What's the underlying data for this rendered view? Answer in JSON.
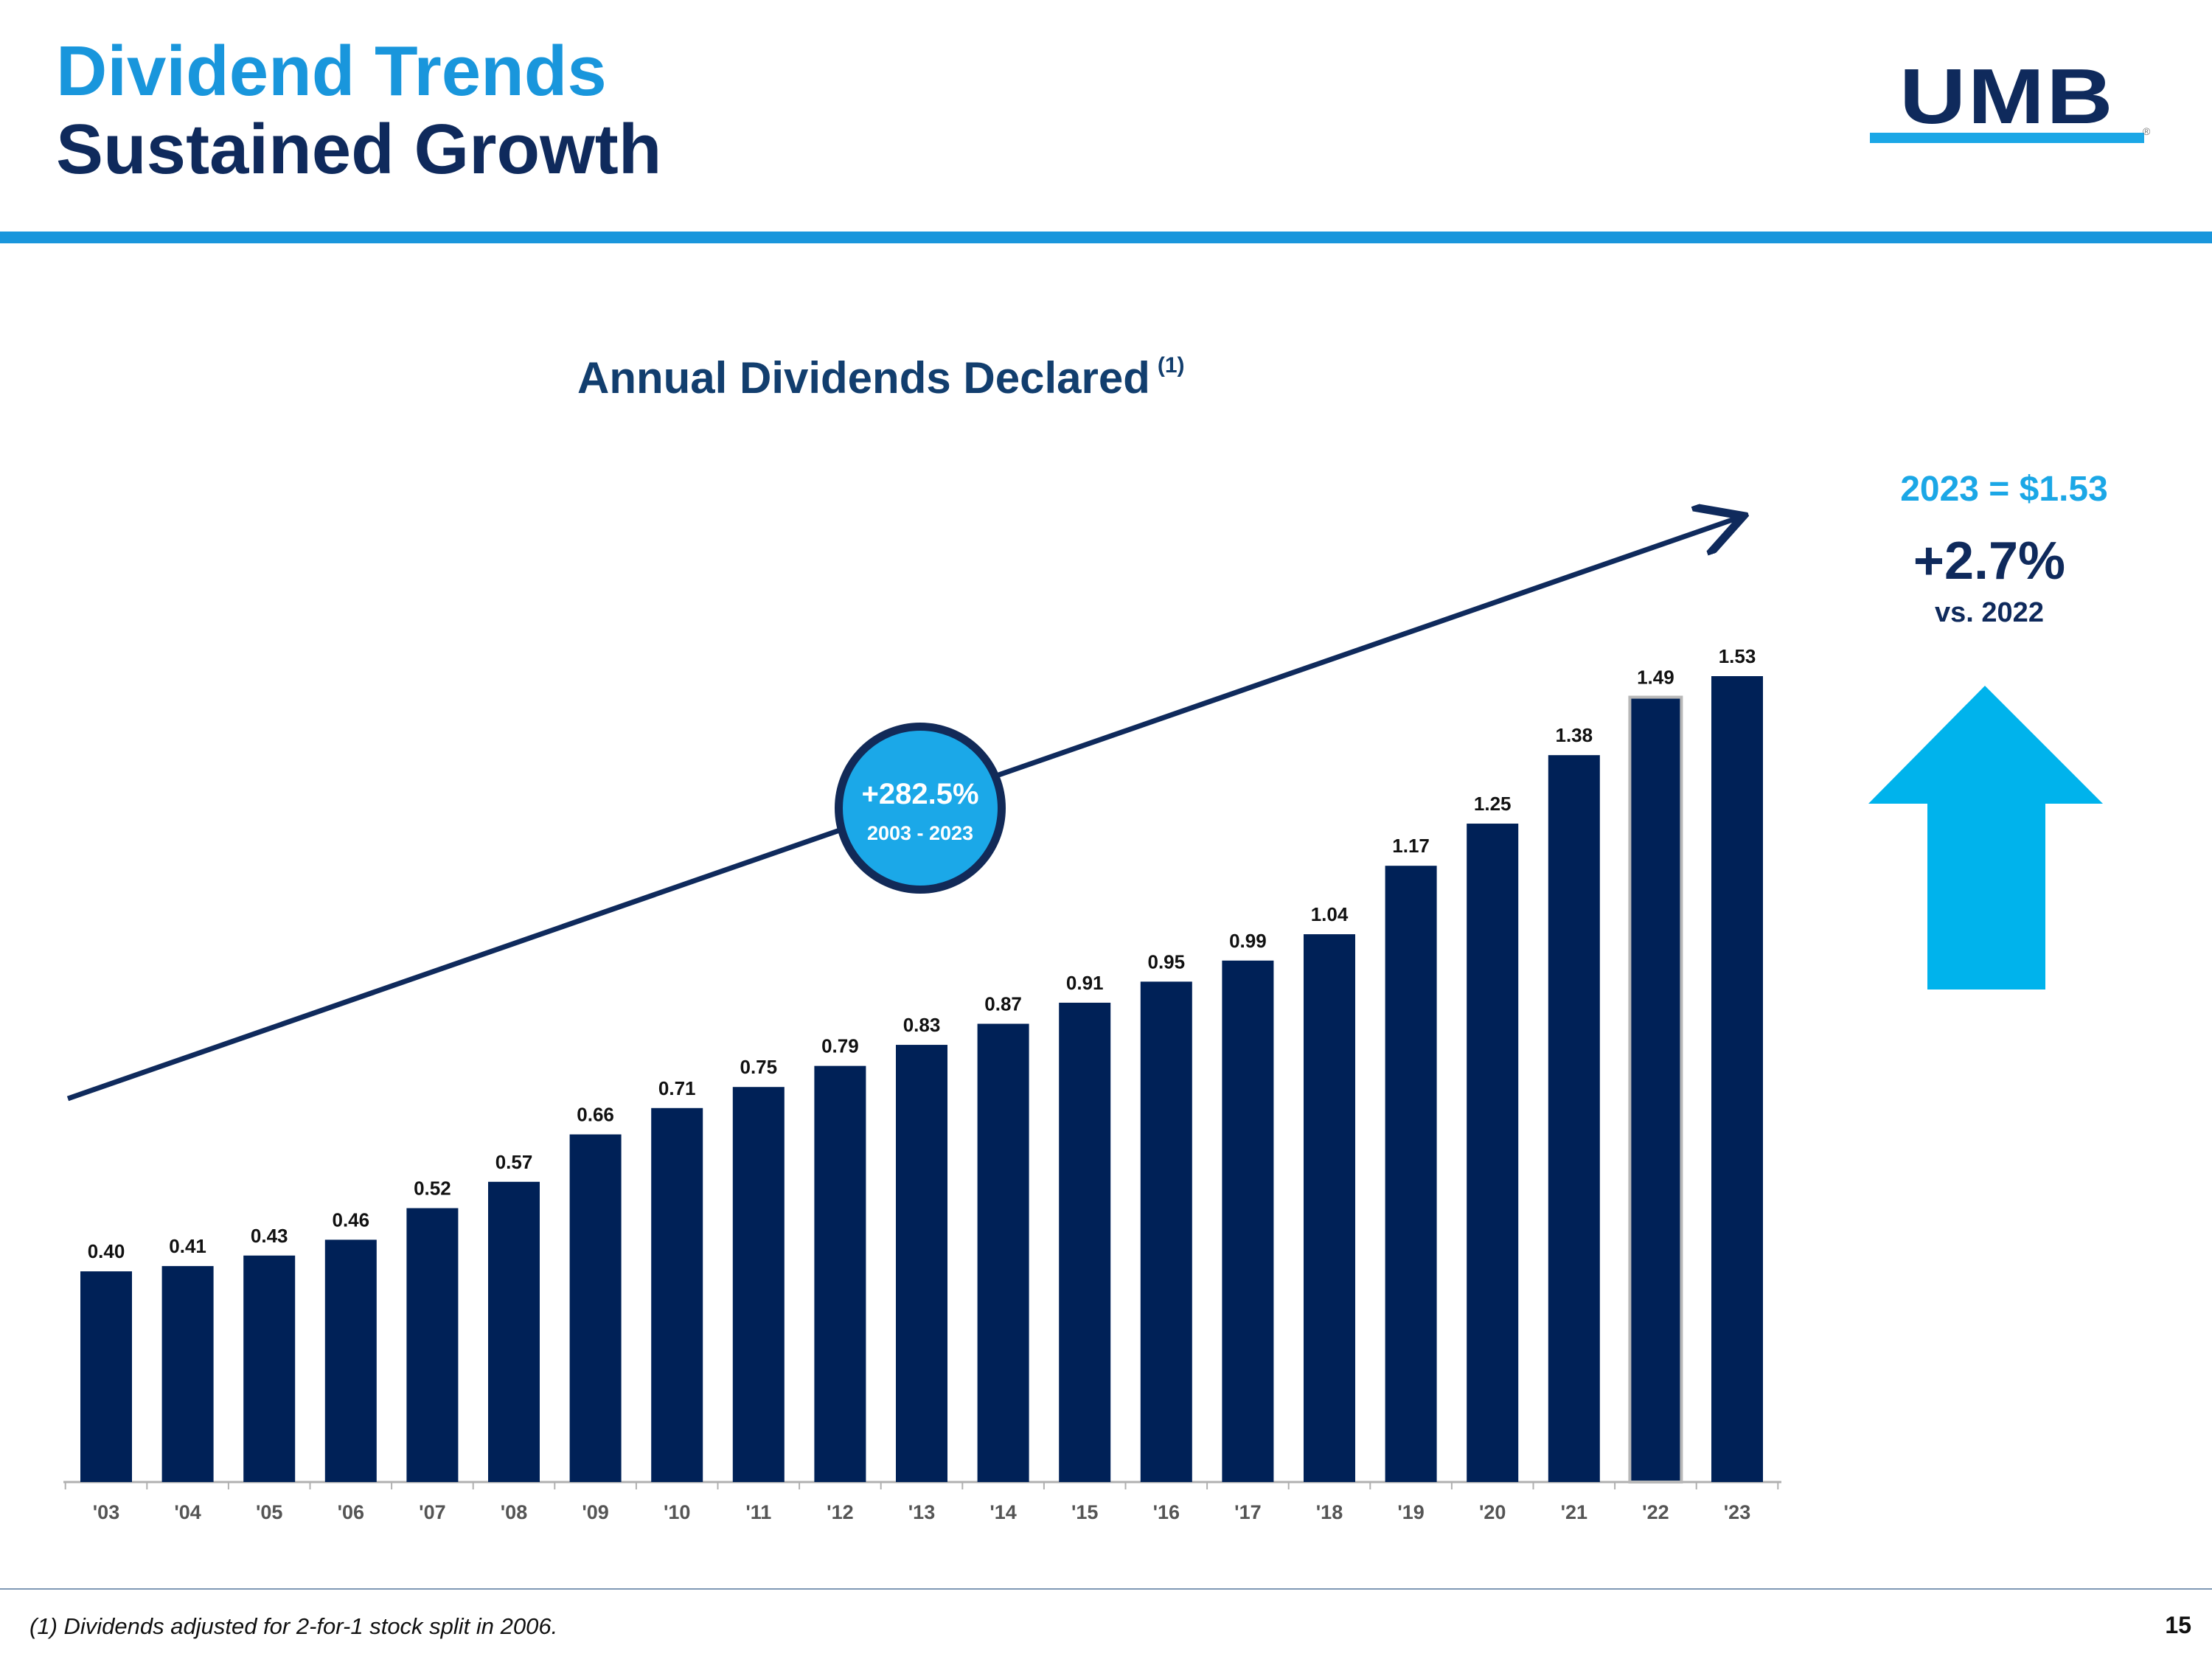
{
  "slide": {
    "title_line1": "Dividend Trends",
    "title_line2": "Sustained Growth",
    "page_number": "15"
  },
  "logo": {
    "text": "UMB",
    "registered": "®"
  },
  "colors": {
    "title_accent": "#1996dc",
    "navy": "#0f2a5c",
    "bar": "#002157",
    "light_blue": "#1ba7e6"
  },
  "chart_data": {
    "type": "bar",
    "title": "Annual Dividends Declared",
    "title_footnote_ref": "(1)",
    "categories": [
      "'03",
      "'04",
      "'05",
      "'06",
      "'07",
      "'08",
      "'09",
      "'10",
      "'11",
      "'12",
      "'13",
      "'14",
      "'15",
      "'16",
      "'17",
      "'18",
      "'19",
      "'20",
      "'21",
      "'22",
      "'23"
    ],
    "values": [
      0.4,
      0.41,
      0.43,
      0.46,
      0.52,
      0.57,
      0.66,
      0.71,
      0.75,
      0.79,
      0.83,
      0.87,
      0.91,
      0.95,
      0.99,
      1.04,
      1.17,
      1.25,
      1.38,
      1.49,
      1.53
    ],
    "value_labels": [
      "0.40",
      "0.41",
      "0.43",
      "0.46",
      "0.52",
      "0.57",
      "0.66",
      "0.71",
      "0.75",
      "0.79",
      "0.83",
      "0.87",
      "0.91",
      "0.95",
      "0.99",
      "1.04",
      "1.17",
      "1.25",
      "1.38",
      "1.49",
      "1.53"
    ],
    "highlighted_category": "'22",
    "xlabel": "",
    "ylabel": "",
    "ylim": [
      0,
      1.53
    ],
    "grid": false,
    "trend_annotation": {
      "growth": "+282.5%",
      "period": "2003 - 2023"
    }
  },
  "callout": {
    "total": "2023 = $1.53",
    "change": "+2.7%",
    "comparison": "vs. 2022"
  },
  "footnote": "(1) Dividends adjusted for 2-for-1 stock split in 2006."
}
